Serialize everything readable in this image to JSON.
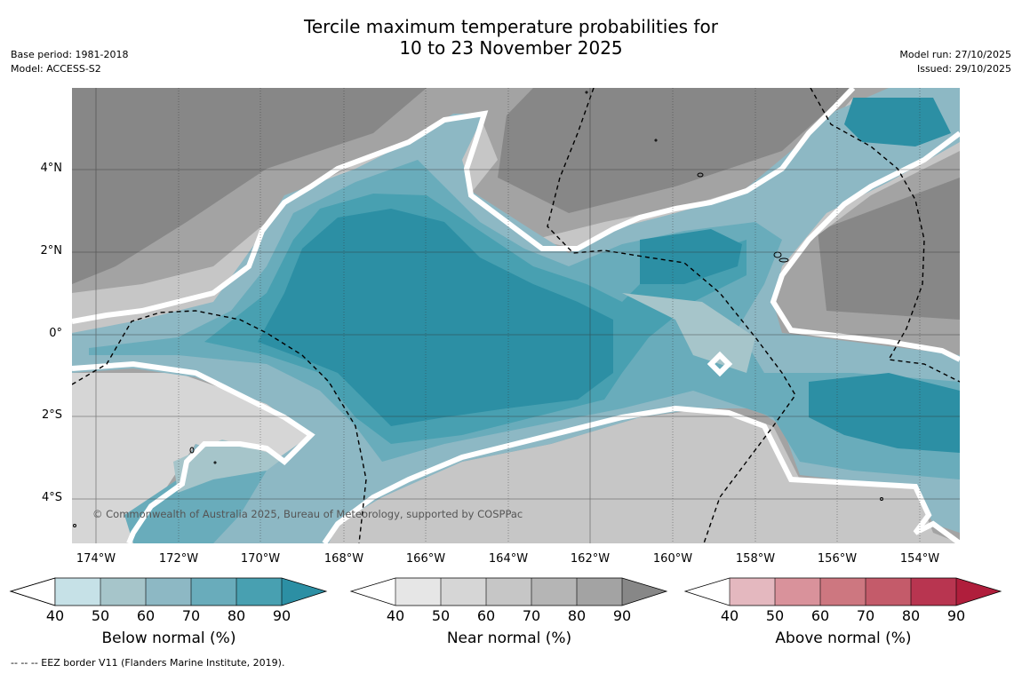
{
  "title_line1": "Tercile maximum temperature probabilities for",
  "title_line2": "10 to 23 November 2025",
  "meta_left": {
    "base_period": "Base period: 1981-2018",
    "model": "Model: ACCESS-S2"
  },
  "meta_right": {
    "model_run": "Model run: 27/10/2025",
    "issued": "Issued: 29/10/2025"
  },
  "lat_labels": [
    "4°N",
    "2°N",
    "0°",
    "2°S",
    "4°S"
  ],
  "lon_labels": [
    "174°W",
    "172°W",
    "170°W",
    "168°W",
    "166°W",
    "164°W",
    "162°W",
    "160°W",
    "158°W",
    "156°W",
    "154°W"
  ],
  "copyright": "© Commonwealth of Australia 2025, Bureau of Meteorology, supported by COSPPac",
  "colorbars": [
    {
      "label": "Below normal (%)",
      "ticks": [
        "40",
        "50",
        "60",
        "70",
        "80",
        "90"
      ],
      "colors": [
        "#c6e1e7",
        "#a6c5ca",
        "#8db8c4",
        "#69acbb",
        "#48a0b1",
        "#2c8fa4"
      ]
    },
    {
      "label": "Near normal (%)",
      "ticks": [
        "40",
        "50",
        "60",
        "70",
        "80",
        "90"
      ],
      "colors": [
        "#e6e6e6",
        "#d6d6d6",
        "#c6c6c6",
        "#b5b5b5",
        "#a3a3a3",
        "#878787"
      ]
    },
    {
      "label": "Above normal (%)",
      "ticks": [
        "40",
        "50",
        "60",
        "70",
        "80",
        "90"
      ],
      "colors": [
        "#e4b8bf",
        "#d9929b",
        "#cd7780",
        "#c45b6a",
        "#b83550",
        "#b01e3c"
      ]
    }
  ],
  "footnote": "-- -- -- EEZ border V11 (Flanders Marine Institute, 2019)."
}
